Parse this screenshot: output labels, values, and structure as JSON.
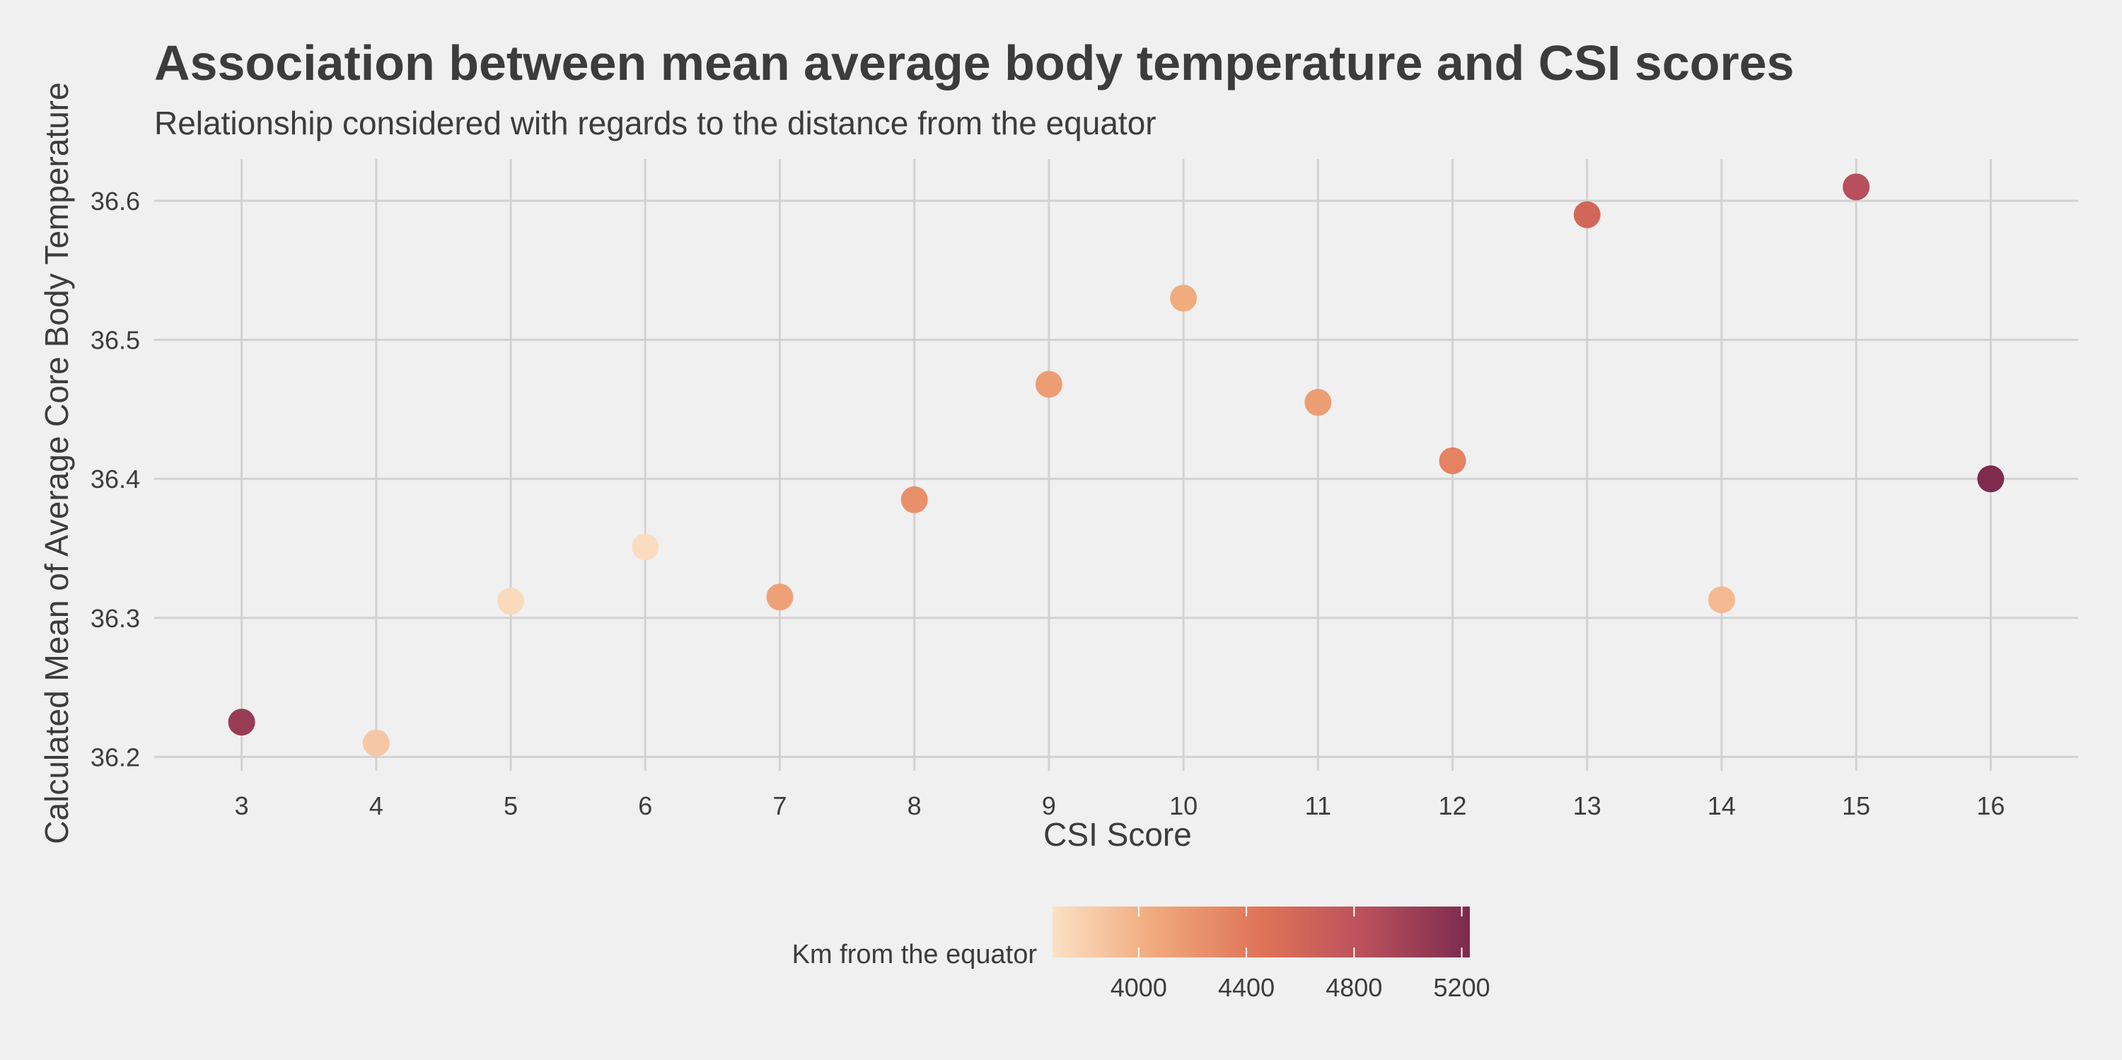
{
  "chart_data": {
    "type": "scatter",
    "title": "Association between mean average body temperature and CSI scores",
    "subtitle": "Relationship considered with regards to the distance from the equator",
    "xlabel": "CSI Score",
    "ylabel": "Calculated Mean of Average Core Body Temperature",
    "xlim": [
      2.35,
      16.65
    ],
    "ylim": [
      36.19,
      36.63
    ],
    "x_ticks": [
      "3",
      "4",
      "5",
      "6",
      "7",
      "8",
      "9",
      "10",
      "11",
      "12",
      "13",
      "14",
      "15",
      "16"
    ],
    "y_ticks": [
      "36.2",
      "36.3",
      "36.4",
      "36.5",
      "36.6"
    ],
    "grid": true,
    "legend": {
      "title": "Km from the equator",
      "position": "bottom",
      "type": "colorbar",
      "range": [
        3680,
        5230
      ],
      "ticks": [
        "4000",
        "4400",
        "4800",
        "5200"
      ],
      "colors": [
        "#fbe0c4",
        "#f0a87b",
        "#df7458",
        "#b9505c",
        "#7c2a4e"
      ]
    },
    "points": [
      {
        "x": 3,
        "y": 36.225,
        "km": 5050
      },
      {
        "x": 4,
        "y": 36.21,
        "km": 3850
      },
      {
        "x": 5,
        "y": 36.312,
        "km": 3720
      },
      {
        "x": 6,
        "y": 36.351,
        "km": 3700
      },
      {
        "x": 7,
        "y": 36.315,
        "km": 4120
      },
      {
        "x": 8,
        "y": 36.385,
        "km": 4250
      },
      {
        "x": 9,
        "y": 36.468,
        "km": 4150
      },
      {
        "x": 10,
        "y": 36.53,
        "km": 4050
      },
      {
        "x": 11,
        "y": 36.455,
        "km": 4150
      },
      {
        "x": 12,
        "y": 36.413,
        "km": 4350
      },
      {
        "x": 13,
        "y": 36.59,
        "km": 4600
      },
      {
        "x": 14,
        "y": 36.313,
        "km": 3950
      },
      {
        "x": 15,
        "y": 36.61,
        "km": 4850
      },
      {
        "x": 16,
        "y": 36.4,
        "km": 5220
      }
    ]
  }
}
